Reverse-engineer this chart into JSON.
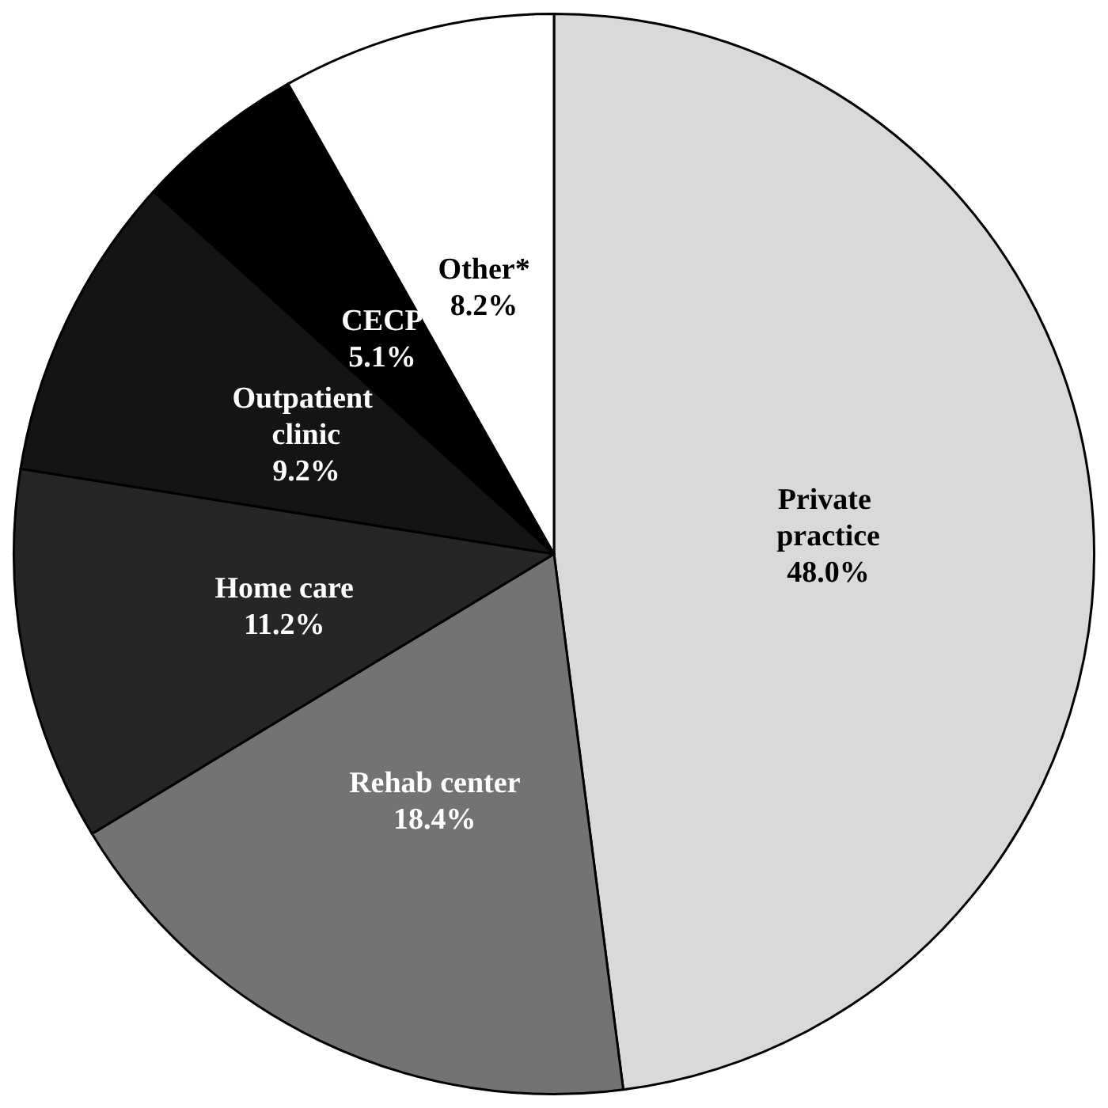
{
  "chart_data": {
    "type": "pie",
    "categories": [
      "Private practice",
      "Rehab center",
      "Home care",
      "Outpatient clinic",
      "CECP",
      "Other*"
    ],
    "values": [
      48.0,
      18.4,
      11.2,
      9.2,
      5.1,
      8.2
    ],
    "colors": [
      "#d9d9d9",
      "#737373",
      "#262626",
      "#141414",
      "#000000",
      "#ffffff"
    ],
    "value_labels": [
      "48.0%",
      "18.4%",
      "11.2%",
      "9.2%",
      "5.1%",
      "8.2%"
    ],
    "legend": false
  }
}
